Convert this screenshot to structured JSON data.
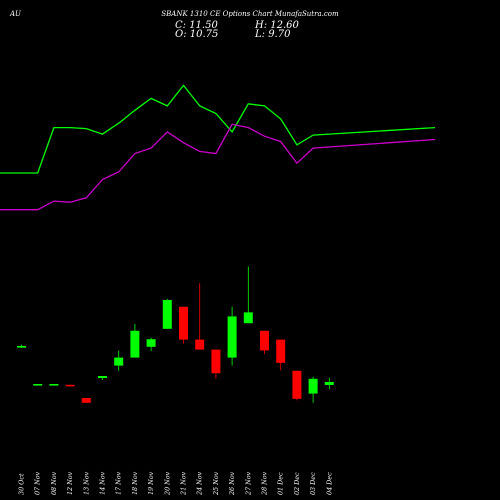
{
  "header": {
    "ticker": "AU",
    "title": "SBANK 1310 CE Options Chart MunafaSutra.com",
    "close_label": "C: 11.50",
    "high_label": "H: 12.60",
    "open_label": "O: 10.75",
    "low_label": "L: 9.70"
  },
  "colors": {
    "background": "#000000",
    "up": "#00ff00",
    "down": "#ff0000",
    "line_upper": "#00ff00",
    "line_lower": "#cc00cc",
    "text": "#ffffff"
  },
  "chart_data": {
    "type": "candlestick",
    "categories": [
      "30 Oct",
      "07 Nov",
      "08 Nov",
      "12 Nov",
      "13 Nov",
      "14 Nov",
      "17 Nov",
      "18 Nov",
      "19 Nov",
      "20 Nov",
      "21 Nov",
      "24 Nov",
      "25 Nov",
      "26 Nov",
      "27 Nov",
      "28 Nov",
      "01 Dec",
      "02 Dec",
      "03 Dec",
      "04 Dec"
    ],
    "candles": [
      {
        "o": 20.3,
        "h": 20.8,
        "l": 20.0,
        "c": 20.5
      },
      {
        "o": 11.0,
        "h": 11.0,
        "l": 11.0,
        "c": 11.0
      },
      {
        "o": 11.0,
        "h": 11.0,
        "l": 11.0,
        "c": 11.0
      },
      {
        "o": 10.8,
        "h": 10.8,
        "l": 10.6,
        "c": 10.6
      },
      {
        "o": 7.5,
        "h": 7.5,
        "l": 6.3,
        "c": 6.3
      },
      {
        "o": 12.5,
        "h": 13.0,
        "l": 12.0,
        "c": 13.0
      },
      {
        "o": 15.6,
        "h": 19.3,
        "l": 14.3,
        "c": 17.6
      },
      {
        "o": 17.6,
        "h": 26.0,
        "l": 17.6,
        "c": 24.3
      },
      {
        "o": 20.3,
        "h": 22.6,
        "l": 19.2,
        "c": 22.2
      },
      {
        "o": 24.8,
        "h": 32.3,
        "l": 24.8,
        "c": 32.0
      },
      {
        "o": 30.3,
        "h": 30.3,
        "l": 21.1,
        "c": 22.1
      },
      {
        "o": 22.1,
        "h": 36.2,
        "l": 19.6,
        "c": 19.6
      },
      {
        "o": 19.6,
        "h": 19.6,
        "l": 12.3,
        "c": 13.7
      },
      {
        "o": 17.6,
        "h": 30.3,
        "l": 15.6,
        "c": 27.9
      },
      {
        "o": 26.2,
        "h": 40.4,
        "l": 26.2,
        "c": 28.9
      },
      {
        "o": 24.3,
        "h": 24.3,
        "l": 18.5,
        "c": 19.4
      },
      {
        "o": 22.1,
        "h": 22.1,
        "l": 14.4,
        "c": 16.3
      },
      {
        "o": 14.3,
        "h": 14.3,
        "l": 6.9,
        "c": 7.3
      },
      {
        "o": 8.6,
        "h": 12.8,
        "l": 6.3,
        "c": 12.3
      },
      {
        "o": 10.75,
        "h": 12.6,
        "l": 9.7,
        "c": 11.5
      }
    ],
    "line_upper": [
      122,
      122,
      164,
      164,
      163,
      158,
      168,
      180,
      191,
      184,
      203,
      184,
      177,
      160,
      186,
      184,
      172,
      148,
      157,
      164
    ],
    "line_lower": [
      88,
      88,
      96,
      95,
      99,
      116,
      123,
      140,
      145,
      160,
      150,
      142,
      140,
      167,
      164,
      156,
      151,
      131,
      145,
      153
    ]
  }
}
